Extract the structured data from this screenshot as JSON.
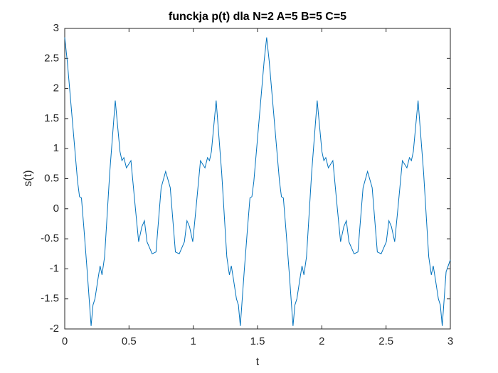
{
  "chart_data": {
    "type": "line",
    "title": "funckja p(t) dla N=2 A=5 B=5 C=5",
    "xlabel": "t",
    "ylabel": "s(t)",
    "xlim": [
      0,
      3
    ],
    "ylim": [
      -2,
      3
    ],
    "xticks": [
      0,
      0.5,
      1,
      1.5,
      2,
      2.5,
      3
    ],
    "yticks": [
      -2,
      -1.5,
      -1,
      -0.5,
      0,
      0.5,
      1,
      1.5,
      2,
      2.5,
      3
    ],
    "grid": false,
    "series": [
      {
        "color": "#0072bd",
        "x": [
          0,
          0.02,
          0.04,
          0.07,
          0.1,
          0.115,
          0.13,
          0.15,
          0.175,
          0.19,
          0.205,
          0.22,
          0.235,
          0.26,
          0.275,
          0.29,
          0.31,
          0.35,
          0.393,
          0.43,
          0.445,
          0.46,
          0.48,
          0.515,
          0.55,
          0.575,
          0.6,
          0.62,
          0.64,
          0.68,
          0.71,
          0.75,
          0.785,
          0.821,
          0.861,
          0.891,
          0.931,
          0.951,
          0.971,
          0.996,
          1.021,
          1.056,
          1.091,
          1.111,
          1.126,
          1.141,
          1.178,
          1.221,
          1.261,
          1.281,
          1.296,
          1.311,
          1.336,
          1.351,
          1.366,
          1.381,
          1.396,
          1.421,
          1.441,
          1.456,
          1.471,
          1.501,
          1.531,
          1.551,
          1.571,
          1.591,
          1.611,
          1.641,
          1.671,
          1.686,
          1.701,
          1.721,
          1.746,
          1.761,
          1.776,
          1.791,
          1.806,
          1.831,
          1.846,
          1.861,
          1.881,
          1.921,
          1.964,
          2.001,
          2.016,
          2.031,
          2.051,
          2.086,
          2.121,
          2.146,
          2.171,
          2.191,
          2.211,
          2.251,
          2.281,
          2.321,
          2.356,
          2.392,
          2.432,
          2.462,
          2.502,
          2.522,
          2.542,
          2.567,
          2.592,
          2.627,
          2.662,
          2.682,
          2.697,
          2.712,
          2.749,
          2.792,
          2.832,
          2.852,
          2.867,
          2.882,
          2.907,
          2.922,
          2.937,
          2.952,
          2.967,
          3.0
        ],
        "values": [
          2.85,
          2.45,
          1.95,
          1.2,
          0.45,
          0.2,
          0.18,
          -0.35,
          -1.05,
          -1.5,
          -1.95,
          -1.6,
          -1.5,
          -1.15,
          -0.95,
          -1.1,
          -0.8,
          0.6,
          1.8,
          0.95,
          0.8,
          0.85,
          0.68,
          0.8,
          0.0,
          -0.55,
          -0.3,
          -0.2,
          -0.55,
          -0.75,
          -0.72,
          0.35,
          0.62,
          0.35,
          -0.72,
          -0.75,
          -0.55,
          -0.2,
          -0.3,
          -0.55,
          0.0,
          0.8,
          0.68,
          0.85,
          0.8,
          0.95,
          1.8,
          0.6,
          -0.8,
          -1.1,
          -0.95,
          -1.15,
          -1.5,
          -1.6,
          -1.95,
          -1.5,
          -1.05,
          -0.35,
          0.18,
          0.2,
          0.45,
          1.2,
          1.95,
          2.45,
          2.85,
          2.45,
          1.95,
          1.2,
          0.45,
          0.2,
          0.18,
          -0.35,
          -1.05,
          -1.5,
          -1.95,
          -1.6,
          -1.5,
          -1.15,
          -0.95,
          -1.1,
          -0.8,
          0.6,
          1.8,
          0.95,
          0.8,
          0.85,
          0.68,
          0.8,
          0.0,
          -0.55,
          -0.3,
          -0.2,
          -0.55,
          -0.75,
          -0.72,
          0.35,
          0.62,
          0.35,
          -0.72,
          -0.75,
          -0.55,
          -0.2,
          -0.3,
          -0.55,
          0.0,
          0.8,
          0.68,
          0.85,
          0.8,
          0.95,
          1.8,
          0.6,
          -0.8,
          -1.1,
          -0.95,
          -1.15,
          -1.5,
          -1.6,
          -1.95,
          -1.5,
          -1.05,
          -0.85
        ]
      }
    ]
  }
}
